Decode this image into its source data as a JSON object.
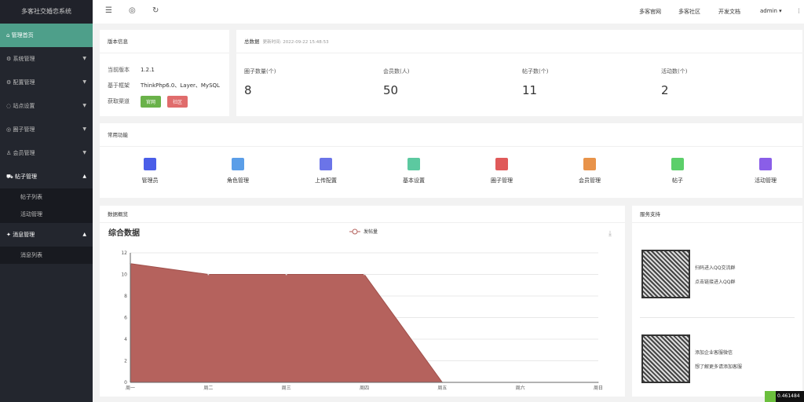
{
  "app": {
    "title": "多客社交婚恋系统"
  },
  "sidebar": {
    "home": "管理首页",
    "items": [
      {
        "label": "系统管理",
        "icon": "gear-icon"
      },
      {
        "label": "配置管理",
        "icon": "gear-icon"
      },
      {
        "label": "站点设置",
        "icon": "globe-icon"
      },
      {
        "label": "圈子管理",
        "icon": "circle-icon"
      },
      {
        "label": "会员管理",
        "icon": "user-icon"
      },
      {
        "label": "帖子管理",
        "icon": "cart-icon",
        "children": [
          "帖子列表",
          "活动管理"
        ]
      },
      {
        "label": "消息管理",
        "icon": "message-icon",
        "children": [
          "消息列表"
        ]
      }
    ]
  },
  "topbar": {
    "links": [
      "多客官网",
      "多客社区",
      "开发文档"
    ],
    "user": "admin"
  },
  "version": {
    "title": "版本信息",
    "rows": [
      {
        "k": "当前版本",
        "v": "1.2.1"
      },
      {
        "k": "基于框架",
        "v": "ThinkPhp6.0、Layer、MySQL"
      },
      {
        "k": "获取渠道"
      }
    ],
    "btn_official": "官网",
    "btn_community": "社区",
    "colors": {
      "official": "#6ab24a",
      "community": "#e06c6c"
    }
  },
  "totals": {
    "title": "总数据",
    "updated": "更新时间: 2022-09-22 15:48:53",
    "stats": [
      {
        "label": "圈子数量(个)",
        "value": "8"
      },
      {
        "label": "会员数(人)",
        "value": "50"
      },
      {
        "label": "帖子数(个)",
        "value": "11"
      },
      {
        "label": "活动数(个)",
        "value": "2"
      }
    ]
  },
  "functions": {
    "title": "常用功能",
    "items": [
      {
        "label": "管理员",
        "color": "#4a5ee8"
      },
      {
        "label": "角色管理",
        "color": "#5b9ee8"
      },
      {
        "label": "上传配置",
        "color": "#6b74e8"
      },
      {
        "label": "基本设置",
        "color": "#5cc9a0"
      },
      {
        "label": "圈子管理",
        "color": "#e05a5a"
      },
      {
        "label": "会员管理",
        "color": "#e8934a"
      },
      {
        "label": "帖子",
        "color": "#5ccf6a"
      },
      {
        "label": "活动管理",
        "color": "#8a5ee8"
      }
    ]
  },
  "overview": {
    "title": "数据概览"
  },
  "chart_data": {
    "type": "area",
    "title": "综合数据",
    "categories": [
      "周一",
      "周二",
      "周三",
      "周四",
      "周五",
      "周六",
      "周日"
    ],
    "series": [
      {
        "name": "发帖量",
        "values": [
          11,
          10,
          10,
          10,
          0,
          0,
          0
        ]
      }
    ],
    "ylim": [
      0,
      12
    ],
    "yticks": [
      0,
      2,
      4,
      6,
      8,
      10,
      12
    ],
    "grid": true,
    "legend": "top-center",
    "color": "#b5625d"
  },
  "support": {
    "title": "服务支持",
    "items": [
      {
        "t1": "扫码进入QQ交流群",
        "t2": "点击链接进入QQ群"
      },
      {
        "t1": "添加企业客服微信",
        "t2": "想了解更多请添加客服"
      }
    ]
  },
  "badge": {
    "value": "0.461484"
  }
}
